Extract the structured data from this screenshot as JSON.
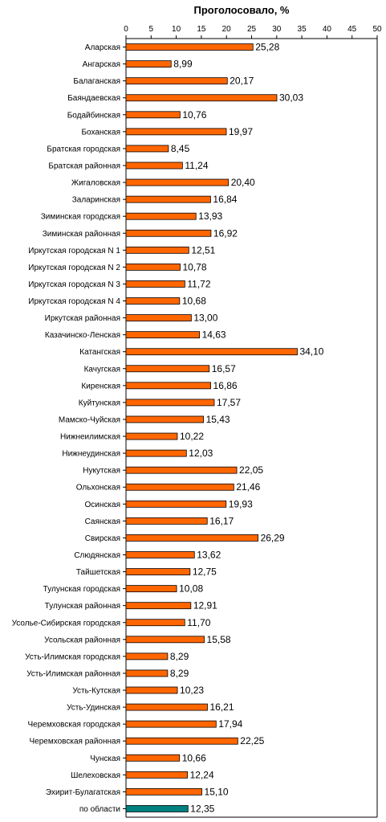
{
  "chart_data": {
    "type": "bar",
    "orientation": "horizontal",
    "title": "Проголосовало, %",
    "xlabel": "",
    "ylabel": "",
    "xlim": [
      0,
      50
    ],
    "ticks": [
      0,
      5,
      10,
      15,
      20,
      25,
      30,
      35,
      40,
      45,
      50
    ],
    "tick_labels": [
      "0",
      "5",
      "10",
      "15",
      "20",
      "25",
      "30",
      "35",
      "40",
      "45",
      "50"
    ],
    "grid": false,
    "legend": "none",
    "colors": {
      "bar": "#ff6600",
      "highlight": "#008080",
      "border": "#000000"
    },
    "categories": [
      "Аларская",
      "Ангарская",
      "Балаганская",
      "Баяндаевская",
      "Бодайбинская",
      "Боханская",
      "Братская городская",
      "Братская районная",
      "Жигаловская",
      "Заларинская",
      "Зиминская городская",
      "Зиминская районная",
      "Иркутская городская N 1",
      "Иркутская городская N 2",
      "Иркутская городская N 3",
      "Иркутская городская N 4",
      "Иркутская районная",
      "Казачинско-Ленская",
      "Катангская",
      "Качугская",
      "Киренская",
      "Куйтунская",
      "Мамско-Чуйская",
      "Нижнеилимская",
      "Нижнеудинская",
      "Нукутская",
      "Ольхонская",
      "Осинская",
      "Саянская",
      "Свирская",
      "Слюдянская",
      "Тайшетская",
      "Тулунская городская",
      "Тулунская районная",
      "Усолье-Сибирская городская",
      "Усольская районная",
      "Усть-Илимская городская",
      "Усть-Илимская районная",
      "Усть-Кутская",
      "Усть-Удинская",
      "Черемховская городская",
      "Черемховская районная",
      "Чунская",
      "Шелеховская",
      "Эхирит-Булагатская",
      "по области"
    ],
    "values": [
      25.28,
      8.99,
      20.17,
      30.03,
      10.76,
      19.97,
      8.45,
      11.24,
      20.4,
      16.84,
      13.93,
      16.92,
      12.51,
      10.78,
      11.72,
      10.68,
      13.0,
      14.63,
      34.1,
      16.57,
      16.86,
      17.57,
      15.43,
      10.22,
      12.03,
      22.05,
      21.46,
      19.93,
      16.17,
      26.29,
      13.62,
      12.75,
      10.08,
      12.91,
      11.7,
      15.58,
      8.29,
      8.29,
      10.23,
      16.21,
      17.94,
      22.25,
      10.66,
      12.24,
      15.1,
      12.35
    ],
    "value_labels": [
      "25,28",
      "8,99",
      "20,17",
      "30,03",
      "10,76",
      "19,97",
      "8,45",
      "11,24",
      "20,40",
      "16,84",
      "13,93",
      "16,92",
      "12,51",
      "10,78",
      "11,72",
      "10,68",
      "13,00",
      "14,63",
      "34,10",
      "16,57",
      "16,86",
      "17,57",
      "15,43",
      "10,22",
      "12,03",
      "22,05",
      "21,46",
      "19,93",
      "16,17",
      "26,29",
      "13,62",
      "12,75",
      "10,08",
      "12,91",
      "11,70",
      "15,58",
      "8,29",
      "8,29",
      "10,23",
      "16,21",
      "17,94",
      "22,25",
      "10,66",
      "12,24",
      "15,10",
      "12,35"
    ],
    "highlight_index": 45
  }
}
